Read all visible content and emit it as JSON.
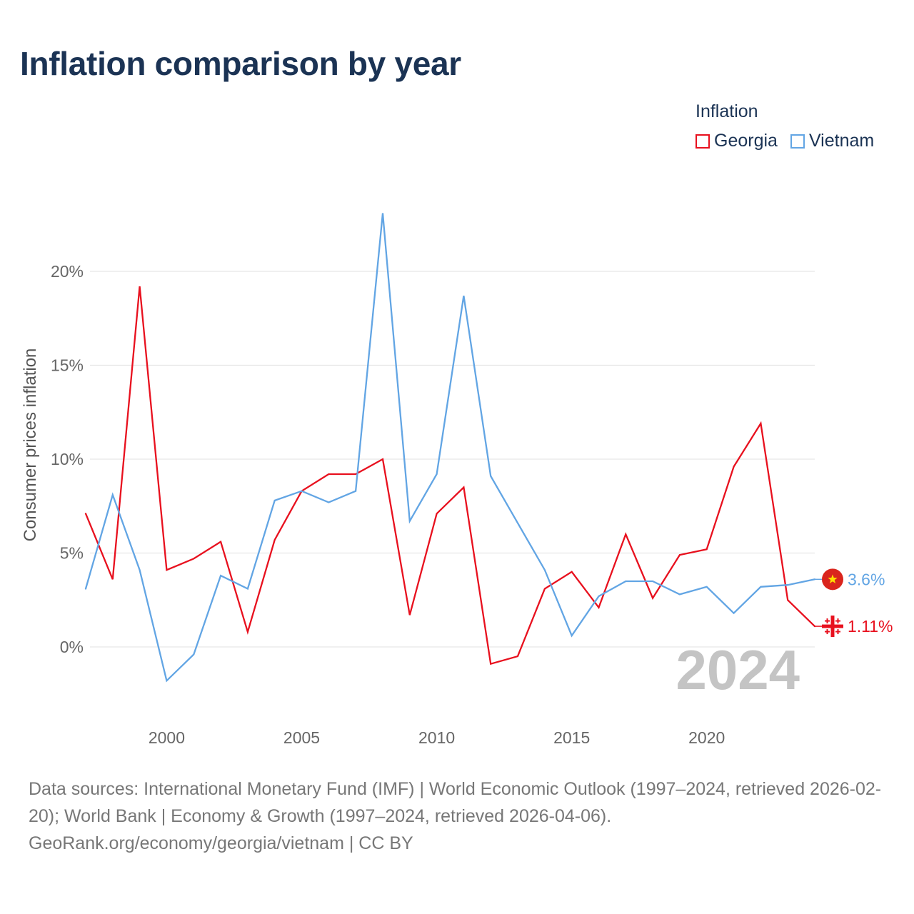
{
  "title": "Inflation comparison by year",
  "legend": {
    "title": "Inflation",
    "items": [
      {
        "label": "Georgia",
        "color": "#e8101e"
      },
      {
        "label": "Vietnam",
        "color": "#62a5e4"
      }
    ]
  },
  "chart_data": {
    "type": "line",
    "title": "Inflation comparison by year",
    "xlabel": "",
    "ylabel": "Consumer prices inflation",
    "x": [
      1997,
      1998,
      1999,
      2000,
      2001,
      2002,
      2003,
      2004,
      2005,
      2006,
      2007,
      2008,
      2009,
      2010,
      2011,
      2012,
      2013,
      2014,
      2015,
      2016,
      2017,
      2018,
      2019,
      2020,
      2021,
      2022,
      2023,
      2024
    ],
    "xlim": [
      1997,
      2024
    ],
    "ylim": [
      -4,
      25
    ],
    "x_ticks": [
      {
        "value": 2000,
        "label": "2000"
      },
      {
        "value": 2005,
        "label": "2005"
      },
      {
        "value": 2010,
        "label": "2010"
      },
      {
        "value": 2015,
        "label": "2015"
      },
      {
        "value": 2020,
        "label": "2020"
      }
    ],
    "y_ticks": [
      {
        "value": 0,
        "label": "0%"
      },
      {
        "value": 5,
        "label": "5%"
      },
      {
        "value": 10,
        "label": "10%"
      },
      {
        "value": 15,
        "label": "15%"
      },
      {
        "value": 20,
        "label": "20%"
      }
    ],
    "grid": true,
    "year_stamp": "2024",
    "series": [
      {
        "name": "Georgia",
        "color": "#e8101e",
        "values": [
          7.1,
          3.6,
          19.2,
          4.1,
          4.7,
          5.6,
          0.8,
          5.7,
          8.3,
          9.2,
          9.2,
          10.0,
          1.7,
          7.1,
          8.5,
          -0.9,
          -0.5,
          3.1,
          4.0,
          2.1,
          6.0,
          2.6,
          4.9,
          5.2,
          9.6,
          11.9,
          2.5,
          1.1
        ],
        "end_label": "1.11%",
        "flag": "georgia-flag-icon"
      },
      {
        "name": "Vietnam",
        "color": "#62a5e4",
        "values": [
          3.1,
          8.1,
          4.1,
          -1.8,
          -0.4,
          3.8,
          3.1,
          7.8,
          8.3,
          7.7,
          8.3,
          23.1,
          6.7,
          9.2,
          18.7,
          9.1,
          6.6,
          4.1,
          0.6,
          2.7,
          3.5,
          3.5,
          2.8,
          3.2,
          1.8,
          3.2,
          3.3,
          3.6
        ],
        "end_label": "3.6%",
        "flag": "vietnam-flag-icon"
      }
    ]
  },
  "sources": {
    "line1": "Data sources: International Monetary Fund (IMF) | World Economic Outlook (1997–2024, retrieved 2026-02-20); World Bank | Economy & Growth (1997–2024, retrieved 2026-04-06).",
    "line2": "GeoRank.org/economy/georgia/vietnam | CC BY"
  }
}
